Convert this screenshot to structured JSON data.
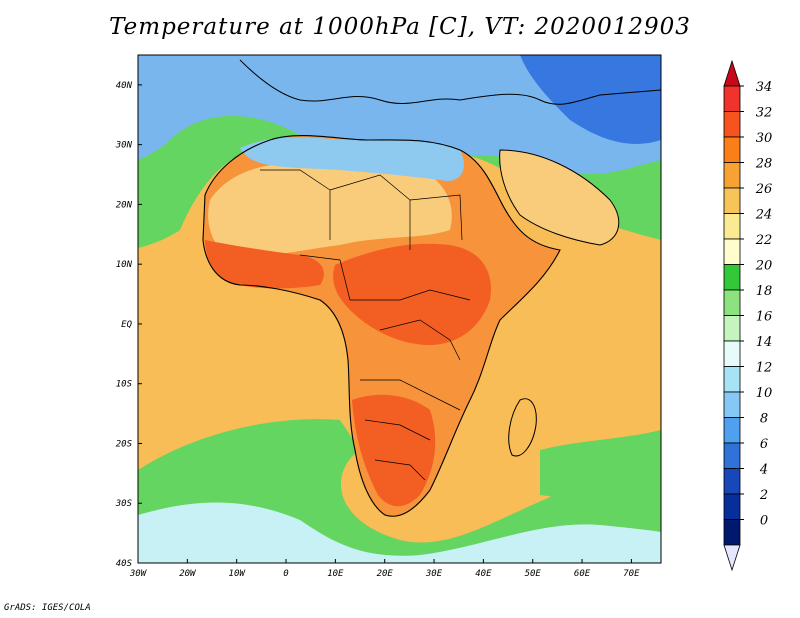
{
  "title": "Temperature at 1000hPa [C], VT: 2020012903",
  "credit": "GrADS: IGES/COLA",
  "map": {
    "lon_range": [
      -30,
      76
    ],
    "lat_range": [
      -40,
      45
    ],
    "lon_ticks": [
      "30W",
      "20W",
      "10W",
      "0",
      "10E",
      "20E",
      "30E",
      "40E",
      "50E",
      "60E",
      "70E"
    ],
    "lat_ticks": [
      "40N",
      "30N",
      "20N",
      "10N",
      "EQ",
      "10S",
      "20S",
      "30S",
      "40S"
    ]
  },
  "colorbar": {
    "labels": [
      "34",
      "32",
      "30",
      "28",
      "26",
      "24",
      "22",
      "20",
      "18",
      "16",
      "14",
      "12",
      "10",
      "8",
      "6",
      "4",
      "2",
      "0"
    ],
    "colors": [
      "#f0342c",
      "#f6531f",
      "#f97f16",
      "#f8a236",
      "#f7c45a",
      "#faeb93",
      "#fffdcd",
      "#33c838",
      "#8be27e",
      "#c5f5bf",
      "#e8fbfb",
      "#a6e3f4",
      "#85c7f5",
      "#4fa0ef",
      "#2f72d8",
      "#1747b8",
      "#062f9c",
      "#00186e"
    ],
    "top_arrow_color": "#c9081a",
    "bottom_arrow_color": "#e6e6ff"
  },
  "field_palette": {
    "water_cold": "#3677e0",
    "water_cool": "#7ab6ee",
    "water_mild": "#c7f1f5",
    "water_green": "#63d560",
    "water_warm": "#f8bd56",
    "land_hot": "#f7933a",
    "land_hotter": "#f35e23",
    "sahara": "#f8cc7a",
    "north_land": "#8ec9f0"
  }
}
